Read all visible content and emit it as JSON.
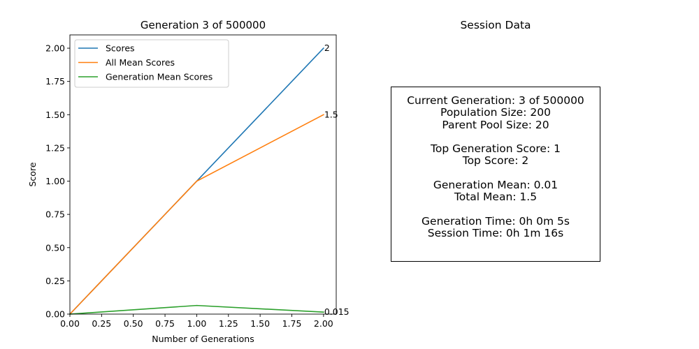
{
  "chart_data": {
    "type": "line",
    "title": "Generation 3 of 500000",
    "xlabel": "Number of Generations",
    "ylabel": "Score",
    "xlim": [
      0,
      2.1
    ],
    "ylim": [
      0,
      2.1
    ],
    "xticks": [
      "0.00",
      "0.25",
      "0.50",
      "0.75",
      "1.00",
      "1.25",
      "1.50",
      "1.75",
      "2.00"
    ],
    "yticks": [
      "0.00",
      "0.25",
      "0.50",
      "0.75",
      "1.00",
      "1.25",
      "1.50",
      "1.75",
      "2.00"
    ],
    "grid": false,
    "legend_position": "top-left",
    "x": [
      0,
      1,
      2
    ],
    "series": [
      {
        "name": "Scores",
        "color": "#1f77b4",
        "values": [
          0,
          1,
          2
        ],
        "end_label": "2"
      },
      {
        "name": "All Mean Scores",
        "color": "#ff7f0e",
        "values": [
          0,
          1,
          1.5
        ],
        "end_label": "1.5"
      },
      {
        "name": "Generation Mean Scores",
        "color": "#2ca02c",
        "values": [
          0,
          0.065,
          0.015
        ],
        "end_label": "0.015"
      }
    ]
  },
  "session": {
    "title": "Session Data",
    "lines": [
      "Current Generation: 3 of 500000",
      "Population Size: 200",
      "Parent Pool Size: 20",
      "",
      "Top Generation Score: 1",
      "Top Score: 2",
      "",
      "Generation Mean: 0.01",
      "Total Mean: 1.5",
      "",
      "Generation Time: 0h 0m 5s",
      "Session Time: 0h 1m 16s"
    ]
  }
}
